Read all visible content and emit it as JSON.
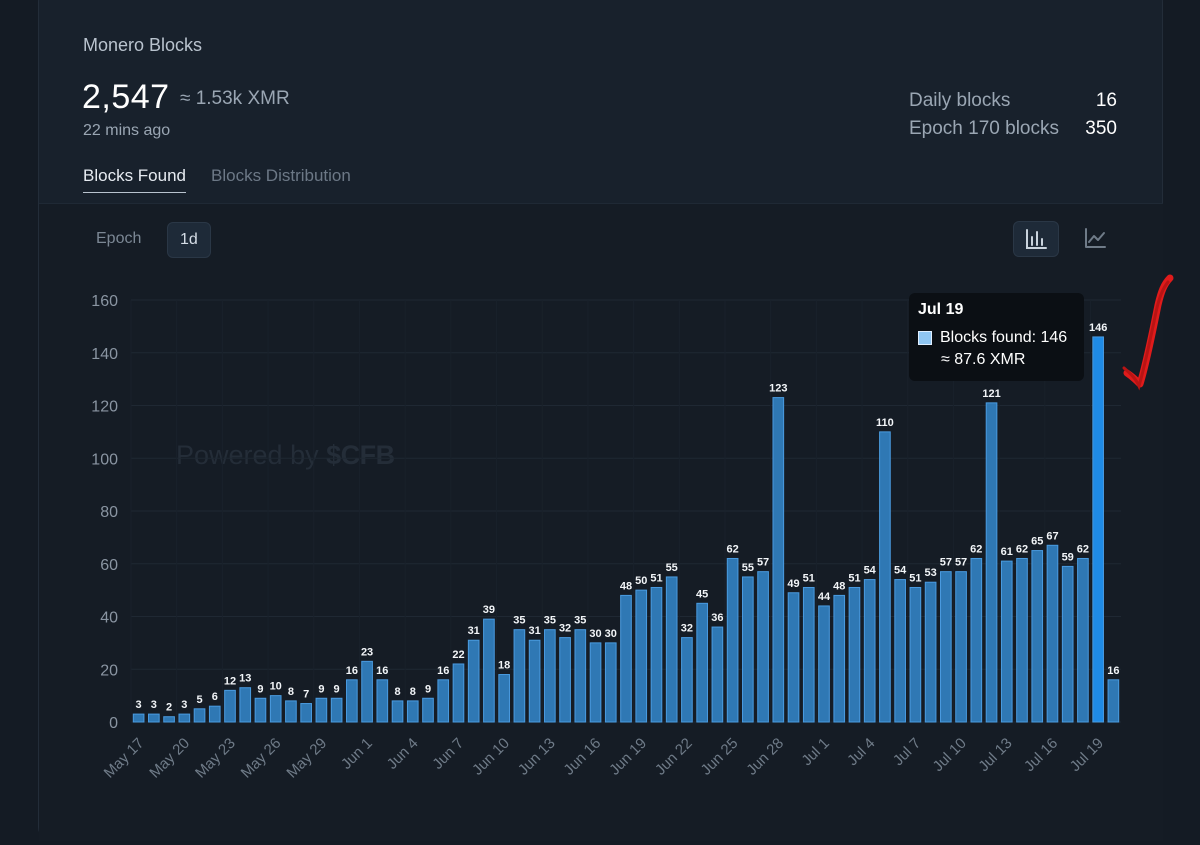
{
  "header": {
    "title": "Monero Blocks",
    "total_blocks": "2,547",
    "total_value": "≈ 1.53k XMR",
    "updated": "22 mins ago"
  },
  "stats": [
    {
      "label": "Daily blocks",
      "value": "16"
    },
    {
      "label": "Epoch 170 blocks",
      "value": "350"
    }
  ],
  "tabs": [
    {
      "label": "Blocks Found",
      "active": true
    },
    {
      "label": "Blocks Distribution",
      "active": false
    }
  ],
  "period_buttons": [
    {
      "label": "Epoch",
      "active": false
    },
    {
      "label": "1d",
      "active": true
    }
  ],
  "chart_view_buttons": [
    {
      "icon": "bar-chart-icon",
      "active": true
    },
    {
      "icon": "line-chart-icon",
      "active": false
    }
  ],
  "watermark": {
    "prefix": "Powered by ",
    "brand": "$CFB"
  },
  "tooltip": {
    "date": "Jul 19",
    "blocks_text": "Blocks found: 146",
    "xmr_text": "≈ 87.6 XMR"
  },
  "colors": {
    "bar_fill": "#2f78b4",
    "bar_stroke": "#4a9be0",
    "highlight_fill": "#1f8be6",
    "annotation": "#e01b1b"
  },
  "chart_data": {
    "type": "bar",
    "title": "",
    "xlabel": "",
    "ylabel": "",
    "ylim": [
      0,
      160
    ],
    "yticks": [
      0,
      20,
      40,
      60,
      80,
      100,
      120,
      140,
      160
    ],
    "grid": true,
    "categories": [
      "May 17",
      "May 18",
      "May 19",
      "May 20",
      "May 21",
      "May 22",
      "May 23",
      "May 24",
      "May 25",
      "May 26",
      "May 27",
      "May 28",
      "May 29",
      "May 30",
      "May 31",
      "Jun 1",
      "Jun 2",
      "Jun 3",
      "Jun 4",
      "Jun 5",
      "Jun 6",
      "Jun 7",
      "Jun 8",
      "Jun 9",
      "Jun 10",
      "Jun 11",
      "Jun 12",
      "Jun 13",
      "Jun 14",
      "Jun 15",
      "Jun 16",
      "Jun 17",
      "Jun 18",
      "Jun 19",
      "Jun 20",
      "Jun 21",
      "Jun 22",
      "Jun 23",
      "Jun 24",
      "Jun 25",
      "Jun 26",
      "Jun 27",
      "Jun 28",
      "Jun 29",
      "Jun 30",
      "Jul 1",
      "Jul 2",
      "Jul 3",
      "Jul 4",
      "Jul 5",
      "Jul 6",
      "Jul 7",
      "Jul 8",
      "Jul 9",
      "Jul 10",
      "Jul 11",
      "Jul 12",
      "Jul 13",
      "Jul 14",
      "Jul 15",
      "Jul 16",
      "Jul 17",
      "Jul 18",
      "Jul 19",
      "Jul 20"
    ],
    "x_tick_labels": [
      "May 17",
      "May 20",
      "May 23",
      "May 26",
      "May 29",
      "Jun 1",
      "Jun 4",
      "Jun 7",
      "Jun 10",
      "Jun 13",
      "Jun 16",
      "Jun 19",
      "Jun 22",
      "Jun 25",
      "Jun 28",
      "Jul 1",
      "Jul 4",
      "Jul 7",
      "Jul 10",
      "Jul 13",
      "Jul 16",
      "Jul 19"
    ],
    "series": [
      {
        "name": "Blocks found",
        "values": [
          3,
          3,
          2,
          3,
          5,
          6,
          12,
          13,
          9,
          10,
          8,
          7,
          9,
          9,
          16,
          23,
          16,
          8,
          8,
          9,
          16,
          22,
          31,
          39,
          18,
          35,
          31,
          35,
          32,
          35,
          30,
          30,
          48,
          50,
          51,
          55,
          32,
          45,
          36,
          62,
          55,
          57,
          123,
          49,
          51,
          44,
          48,
          51,
          54,
          110,
          54,
          51,
          53,
          57,
          57,
          62,
          121,
          61,
          62,
          65,
          67,
          59,
          62,
          146,
          16
        ]
      }
    ],
    "highlighted": "Jul 19"
  }
}
